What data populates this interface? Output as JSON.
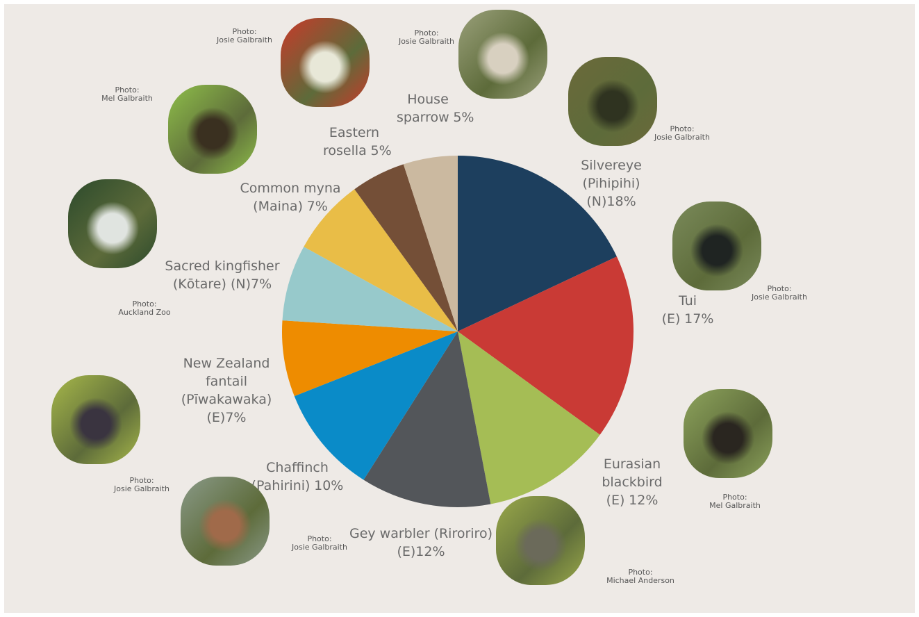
{
  "chart_data": {
    "type": "pie",
    "categories": [
      "Silvereye (Pihipihi) (N)",
      "Tui (E)",
      "Eurasian blackbird (E)",
      "Gey warbler (Riroriro) (E)",
      "Chaffinch (Pahirini)",
      "New Zealand fantail (Pīwakawaka) (E)",
      "Sacred kingfisher (Kōtare) (N)",
      "Common myna (Maina)",
      "Eastern rosella",
      "House sparrow"
    ],
    "values": [
      18,
      17,
      12,
      12,
      10,
      7,
      7,
      7,
      5,
      5
    ],
    "value_labels": [
      "18%",
      "17%",
      "12%",
      "12%",
      "10%",
      "7%",
      "7%",
      "7%",
      "5%",
      "5%"
    ],
    "colors": [
      "#1d3f5e",
      "#c93a35",
      "#a5bd55",
      "#53565a",
      "#0a8bc8",
      "#ee8c00",
      "#97c9cb",
      "#e9bd47",
      "#744f37",
      "#cbb9a0"
    ],
    "photos": [
      {
        "label": "Photo:",
        "credit": "Josie Galbraith"
      },
      {
        "label": "Photo:",
        "credit": "Josie Galbraith"
      },
      {
        "label": "Photo:",
        "credit": "Mel Galbraith"
      },
      {
        "label": "Photo:",
        "credit": "Michael Anderson"
      },
      {
        "label": "Photo:",
        "credit": "Josie Galbraith"
      },
      {
        "label": "Photo:",
        "credit": "Josie Galbraith"
      },
      {
        "label": "Photo:",
        "credit": "Auckland Zoo"
      },
      {
        "label": "Photo:",
        "credit": "Mel Galbraith"
      },
      {
        "label": "Photo:",
        "credit": "Josie Galbraith"
      },
      {
        "label": "Photo:",
        "credit": "Josie Galbraith"
      }
    ]
  }
}
